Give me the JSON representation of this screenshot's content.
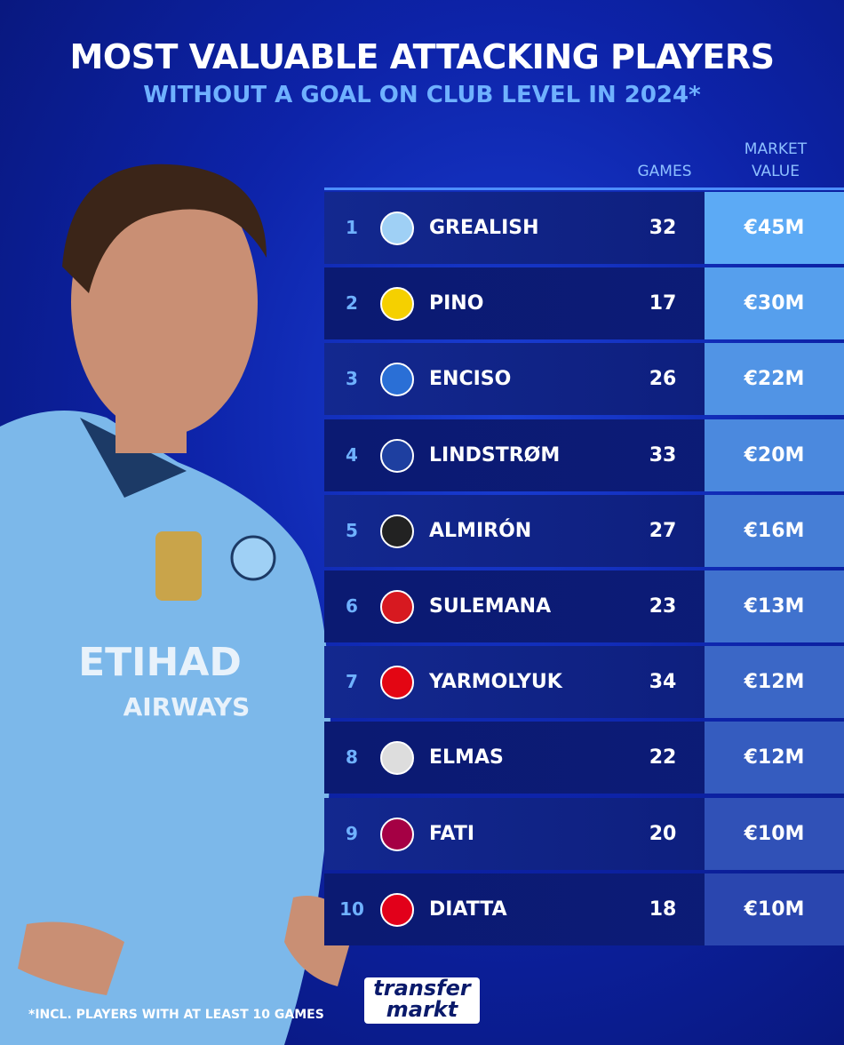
{
  "header": {
    "title": "MOST VALUABLE ATTACKING PLAYERS",
    "subtitle": "WITHOUT A GOAL ON CLUB LEVEL IN 2024*"
  },
  "table": {
    "columns": [
      "GAMES",
      "MARKET VALUE"
    ],
    "rows": [
      [
        1,
        "GREALISH",
        32,
        "€45M"
      ],
      [
        2,
        "PINO",
        17,
        "€30M"
      ],
      [
        3,
        "ENCISO",
        26,
        "€22M"
      ],
      [
        4,
        "LINDSTRØM",
        33,
        "€20M"
      ],
      [
        5,
        "ALMIRÓN",
        27,
        "€16M"
      ],
      [
        6,
        "SULEMANA",
        23,
        "€13M"
      ],
      [
        7,
        "YARMOLYUK",
        34,
        "€12M"
      ],
      [
        8,
        "ELMAS",
        22,
        "€12M"
      ],
      [
        9,
        "FATI",
        20,
        "€10M"
      ],
      [
        10,
        "DIATTA",
        18,
        "€10M"
      ]
    ]
  },
  "footnote": "*INCL. PLAYERS WITH AT LEAST 10 GAMES",
  "logo": {
    "line1": "transfer",
    "line2": "markt"
  }
}
